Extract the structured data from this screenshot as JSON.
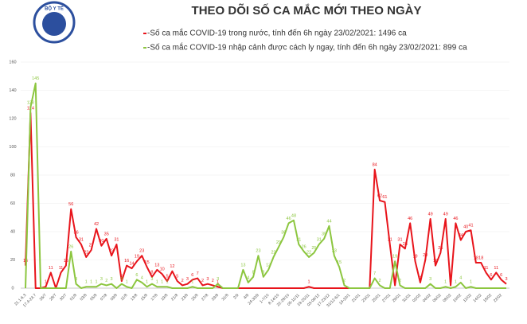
{
  "logo": {
    "text": "BỘ Y TẾ"
  },
  "chart_data": {
    "type": "line",
    "title": "THEO DÕI SỐ CA MẮC MỚI THEO NGÀY",
    "categories": [
      "21.1-6.3",
      null,
      "17.4-24.7",
      null,
      "26/7",
      null,
      "28/7",
      null,
      "30/7",
      null,
      "01/8",
      null,
      "03/8",
      null,
      "05/8",
      null,
      "07/8",
      null,
      "09/8",
      null,
      "11/8",
      null,
      "13/8",
      null,
      "15/8",
      null,
      "17/8",
      null,
      "19/8",
      null,
      "21/8",
      null,
      "23/8",
      null,
      "25/8",
      null,
      "27/8",
      null,
      "29/8",
      null,
      "31/8",
      null,
      "2/9",
      null,
      "4/9",
      null,
      "24-30/9",
      null,
      "1-7/10",
      null,
      "8-14/10",
      null,
      "22-28/10",
      null,
      "05-11/11",
      null,
      "19-25/11",
      null,
      "03-09/12",
      null,
      "17-23/12",
      null,
      "31/12-6/1",
      null,
      "14-20/1",
      null,
      "21/01",
      null,
      "23/01",
      null,
      "25/01",
      null,
      "27/01",
      null,
      "29/01",
      null,
      "31/01",
      null,
      "02/02",
      null,
      "04/02",
      null,
      "06/02",
      null,
      "08/02",
      null,
      "10/02",
      null,
      "12/02",
      null,
      "14/02",
      null,
      "18/02",
      null,
      "22/02",
      null
    ],
    "series": [
      {
        "name": "-Số ca mắc COVID-19 trong nước, tính đến 6h ngày 23/02/2021: 1496 ca",
        "color": "#e8141b",
        "values": [
          16,
          124,
          0,
          0,
          1,
          11,
          0,
          11,
          16,
          56,
          36,
          31,
          22,
          27,
          42,
          30,
          35,
          23,
          31,
          5,
          16,
          14,
          19,
          23,
          15,
          8,
          13,
          10,
          5,
          12,
          5,
          2,
          3,
          6,
          7,
          2,
          3,
          2,
          1,
          0,
          0,
          0,
          0,
          0,
          0,
          0,
          0,
          0,
          0,
          0,
          0,
          0,
          0,
          0,
          0,
          0,
          1,
          0,
          0,
          0,
          0,
          0,
          0,
          0,
          0,
          0,
          0,
          0,
          0,
          84,
          62,
          61,
          31,
          2,
          31,
          28,
          46,
          19,
          4,
          20,
          49,
          16,
          25,
          49,
          2,
          46,
          34,
          40,
          41,
          18,
          18,
          11,
          6,
          11,
          6,
          3
        ]
      },
      {
        "name": "-Số ca mắc COVID-19 nhập cảnh được cách ly ngay, tính đến 6h ngày 23/02/2021: 899 ca",
        "color": "#8cc63f",
        "values": [
          0,
          128,
          145,
          0,
          0,
          0,
          0,
          0,
          0,
          26,
          3,
          0,
          1,
          1,
          1,
          3,
          2,
          3,
          0,
          3,
          1,
          0,
          6,
          4,
          1,
          3,
          1,
          1,
          1,
          0,
          0,
          0,
          0,
          1,
          0,
          0,
          0,
          0,
          3,
          0,
          0,
          0,
          0,
          13,
          4,
          8,
          23,
          8,
          13,
          22,
          29,
          36,
          46,
          48,
          31,
          26,
          22,
          25,
          31,
          35,
          44,
          23,
          15,
          2,
          0,
          0,
          0,
          0,
          0,
          7,
          2,
          0,
          0,
          19,
          2,
          0,
          0,
          0,
          0,
          0,
          3,
          0,
          0,
          1,
          0,
          1,
          4,
          0,
          1,
          0,
          0,
          0,
          0,
          0,
          0,
          0
        ]
      }
    ],
    "ylim": [
      0,
      160
    ],
    "yticks": [
      0,
      20,
      40,
      60,
      80,
      100,
      120,
      140,
      160
    ],
    "grid": true
  }
}
